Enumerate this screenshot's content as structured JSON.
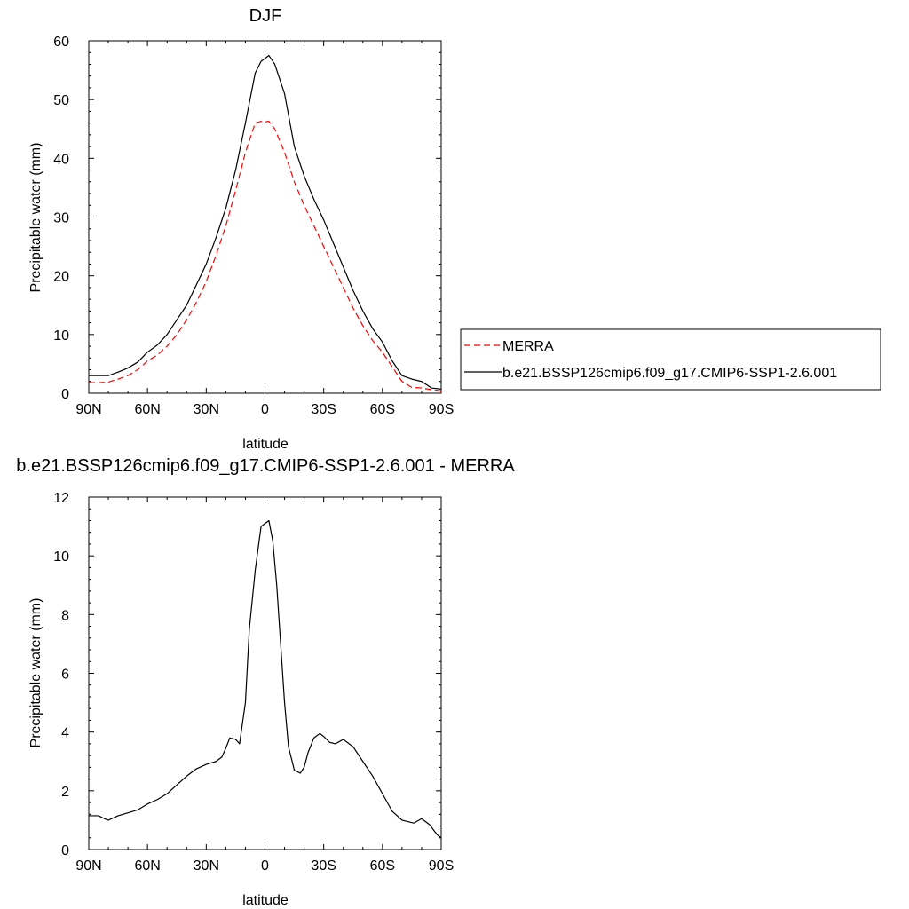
{
  "chart_data": [
    {
      "type": "line",
      "title": "DJF",
      "xlabel": "latitude",
      "ylabel": "Precipitable water (mm)",
      "xlim": [
        90,
        -90
      ],
      "ylim": [
        0,
        60
      ],
      "x_ticks": [
        90,
        60,
        30,
        0,
        -30,
        -60,
        -90
      ],
      "x_tick_labels": [
        "90N",
        "60N",
        "30N",
        "0",
        "30S",
        "60S",
        "90S"
      ],
      "y_ticks": [
        0,
        10,
        20,
        30,
        40,
        50,
        60
      ],
      "y_tick_labels": [
        "0",
        "10",
        "20",
        "30",
        "40",
        "50",
        "60"
      ],
      "legend_position": "right",
      "series": [
        {
          "name": "MERRA",
          "color": "#ff0000",
          "dash": "dashed",
          "x": [
            90,
            85,
            80,
            75,
            70,
            65,
            60,
            55,
            50,
            45,
            40,
            35,
            30,
            25,
            20,
            15,
            10,
            5,
            2,
            0,
            -2,
            -5,
            -10,
            -15,
            -20,
            -25,
            -30,
            -35,
            -40,
            -45,
            -50,
            -55,
            -60,
            -65,
            -70,
            -75,
            -80,
            -85,
            -90
          ],
          "y": [
            1.8,
            1.8,
            1.9,
            2.4,
            3.0,
            4.0,
            5.5,
            6.5,
            8.0,
            10.0,
            12.5,
            15.5,
            19.0,
            23.5,
            28.5,
            34.5,
            41.0,
            46.0,
            46.3,
            46.2,
            46.3,
            45.0,
            41.0,
            36.0,
            32.0,
            28.5,
            25.0,
            21.5,
            18.0,
            14.5,
            11.5,
            9.0,
            7.0,
            4.5,
            2.0,
            1.0,
            0.9,
            0.6,
            0.4
          ]
        },
        {
          "name": "b.e21.BSSP126cmip6.f09_g17.CMIP6-SSP1-2.6.001",
          "color": "#000000",
          "dash": "solid",
          "x": [
            90,
            85,
            80,
            75,
            70,
            65,
            60,
            55,
            50,
            45,
            40,
            35,
            30,
            25,
            20,
            15,
            10,
            5,
            2,
            0,
            -2,
            -5,
            -10,
            -15,
            -20,
            -25,
            -30,
            -35,
            -40,
            -45,
            -50,
            -55,
            -60,
            -65,
            -70,
            -75,
            -80,
            -85,
            -90
          ],
          "y": [
            3.0,
            3.0,
            3.0,
            3.6,
            4.3,
            5.3,
            7.0,
            8.2,
            10.0,
            12.5,
            15.0,
            18.5,
            22.0,
            26.5,
            31.5,
            38.0,
            46.0,
            54.5,
            56.5,
            57.0,
            57.5,
            56.0,
            51.0,
            42.0,
            37.0,
            33.0,
            29.5,
            25.5,
            21.5,
            17.5,
            14.0,
            11.0,
            8.7,
            5.5,
            3.0,
            2.4,
            2.0,
            0.9,
            0.7
          ]
        }
      ]
    },
    {
      "type": "line",
      "title": "b.e21.BSSP126cmip6.f09_g17.CMIP6-SSP1-2.6.001 - MERRA",
      "xlabel": "latitude",
      "ylabel": "Precipitable water (mm)",
      "xlim": [
        90,
        -90
      ],
      "ylim": [
        0,
        12
      ],
      "x_ticks": [
        90,
        60,
        30,
        0,
        -30,
        -60,
        -90
      ],
      "x_tick_labels": [
        "90N",
        "60N",
        "30N",
        "0",
        "30S",
        "60S",
        "90S"
      ],
      "y_ticks": [
        0,
        2,
        4,
        6,
        8,
        10,
        12
      ],
      "y_tick_labels": [
        "0",
        "2",
        "4",
        "6",
        "8",
        "10",
        "12"
      ],
      "series": [
        {
          "color": "#000000",
          "dash": "solid",
          "x": [
            90,
            85,
            82,
            80,
            75,
            70,
            65,
            60,
            55,
            50,
            45,
            40,
            35,
            30,
            25,
            22,
            20,
            18,
            15,
            13,
            10,
            8,
            5,
            3,
            2,
            0,
            -2,
            -4,
            -6,
            -8,
            -10,
            -12,
            -15,
            -18,
            -20,
            -22,
            -25,
            -28,
            -30,
            -33,
            -36,
            -40,
            -45,
            -50,
            -55,
            -60,
            -65,
            -70,
            -73,
            -76,
            -80,
            -84,
            -88,
            -90
          ],
          "y": [
            1.15,
            1.15,
            1.05,
            1.0,
            1.15,
            1.25,
            1.35,
            1.55,
            1.7,
            1.9,
            2.2,
            2.5,
            2.75,
            2.9,
            3.0,
            3.15,
            3.45,
            3.8,
            3.75,
            3.6,
            5.0,
            7.5,
            9.5,
            10.5,
            11.0,
            11.1,
            11.2,
            10.5,
            9.0,
            7.0,
            5.0,
            3.5,
            2.7,
            2.6,
            2.8,
            3.3,
            3.8,
            3.95,
            3.85,
            3.65,
            3.6,
            3.75,
            3.5,
            3.0,
            2.5,
            1.9,
            1.3,
            1.0,
            0.95,
            0.9,
            1.05,
            0.85,
            0.5,
            0.4
          ]
        }
      ]
    }
  ]
}
